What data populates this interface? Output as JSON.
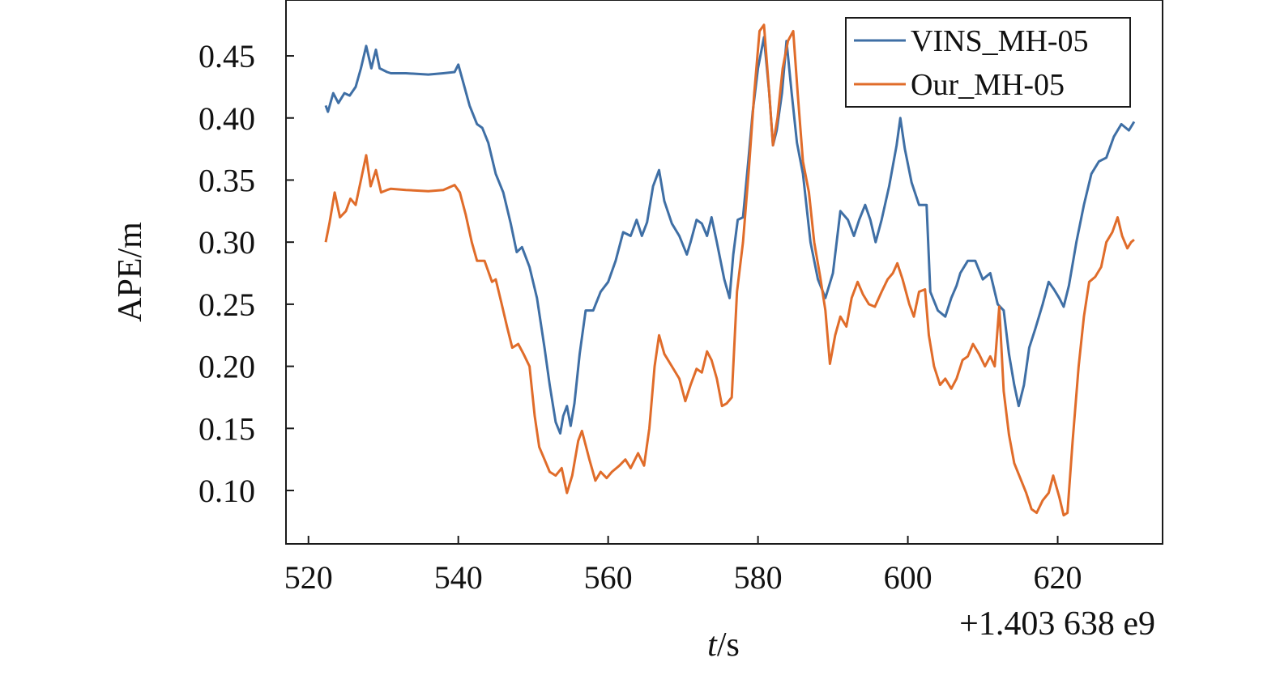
{
  "chart_data": {
    "type": "line",
    "xlabel_italic": "t",
    "xlabel_rest": "/s",
    "ylabel": "APE/m",
    "x_offset_label": "+1.403 638 e9",
    "xlim": [
      517,
      634
    ],
    "ylim": [
      0.057,
      0.495
    ],
    "x_ticks": [
      520,
      540,
      560,
      580,
      600,
      620
    ],
    "x_tick_labels": [
      "520",
      "540",
      "560",
      "580",
      "600",
      "620"
    ],
    "y_ticks": [
      0.1,
      0.15,
      0.2,
      0.25,
      0.3,
      0.35,
      0.4,
      0.45
    ],
    "y_tick_labels": [
      "0.10",
      "0.15",
      "0.20",
      "0.25",
      "0.30",
      "0.35",
      "0.40",
      "0.45"
    ],
    "grid": false,
    "legend_position": "top-right",
    "series": [
      {
        "name": "VINS_MH-05",
        "color": "#3f6fa5",
        "points": [
          [
            522.3,
            0.41
          ],
          [
            522.6,
            0.405
          ],
          [
            523.3,
            0.42
          ],
          [
            524.0,
            0.412
          ],
          [
            524.8,
            0.42
          ],
          [
            525.5,
            0.418
          ],
          [
            526.3,
            0.425
          ],
          [
            527.0,
            0.44
          ],
          [
            527.7,
            0.458
          ],
          [
            528.4,
            0.44
          ],
          [
            529.0,
            0.455
          ],
          [
            529.5,
            0.44
          ],
          [
            530.5,
            0.437
          ],
          [
            531.0,
            0.436
          ],
          [
            533.0,
            0.436
          ],
          [
            536.0,
            0.435
          ],
          [
            538.0,
            0.436
          ],
          [
            539.5,
            0.437
          ],
          [
            540.0,
            0.443
          ],
          [
            540.6,
            0.43
          ],
          [
            541.5,
            0.41
          ],
          [
            542.5,
            0.395
          ],
          [
            543.2,
            0.392
          ],
          [
            544.0,
            0.38
          ],
          [
            545.0,
            0.355
          ],
          [
            546.0,
            0.34
          ],
          [
            547.0,
            0.315
          ],
          [
            547.8,
            0.292
          ],
          [
            548.5,
            0.296
          ],
          [
            549.5,
            0.28
          ],
          [
            550.5,
            0.255
          ],
          [
            551.5,
            0.215
          ],
          [
            552.2,
            0.185
          ],
          [
            553.0,
            0.155
          ],
          [
            553.6,
            0.146
          ],
          [
            554.0,
            0.16
          ],
          [
            554.5,
            0.168
          ],
          [
            555.0,
            0.152
          ],
          [
            555.5,
            0.17
          ],
          [
            556.2,
            0.21
          ],
          [
            557.0,
            0.245
          ],
          [
            558.0,
            0.245
          ],
          [
            559.0,
            0.26
          ],
          [
            560.0,
            0.268
          ],
          [
            561.0,
            0.285
          ],
          [
            562.0,
            0.308
          ],
          [
            563.0,
            0.305
          ],
          [
            563.8,
            0.318
          ],
          [
            564.5,
            0.305
          ],
          [
            565.2,
            0.316
          ],
          [
            566.0,
            0.345
          ],
          [
            566.8,
            0.358
          ],
          [
            567.5,
            0.333
          ],
          [
            568.5,
            0.315
          ],
          [
            569.5,
            0.305
          ],
          [
            570.5,
            0.29
          ],
          [
            571.0,
            0.3
          ],
          [
            571.8,
            0.318
          ],
          [
            572.5,
            0.315
          ],
          [
            573.2,
            0.305
          ],
          [
            573.8,
            0.32
          ],
          [
            574.5,
            0.3
          ],
          [
            575.5,
            0.27
          ],
          [
            576.2,
            0.255
          ],
          [
            576.7,
            0.29
          ],
          [
            577.3,
            0.318
          ],
          [
            578.0,
            0.32
          ],
          [
            578.7,
            0.365
          ],
          [
            579.3,
            0.405
          ],
          [
            580.0,
            0.44
          ],
          [
            580.8,
            0.465
          ],
          [
            581.5,
            0.42
          ],
          [
            582.0,
            0.378
          ],
          [
            582.5,
            0.39
          ],
          [
            583.2,
            0.42
          ],
          [
            583.8,
            0.462
          ],
          [
            584.5,
            0.42
          ],
          [
            585.2,
            0.38
          ],
          [
            586.0,
            0.355
          ],
          [
            587.0,
            0.3
          ],
          [
            588.0,
            0.27
          ],
          [
            589.0,
            0.255
          ],
          [
            590.0,
            0.275
          ],
          [
            591.0,
            0.325
          ],
          [
            592.0,
            0.318
          ],
          [
            592.8,
            0.305
          ],
          [
            593.5,
            0.318
          ],
          [
            594.3,
            0.33
          ],
          [
            595.0,
            0.318
          ],
          [
            595.7,
            0.3
          ],
          [
            596.5,
            0.318
          ],
          [
            597.5,
            0.345
          ],
          [
            598.5,
            0.378
          ],
          [
            599.0,
            0.4
          ],
          [
            599.6,
            0.375
          ],
          [
            600.5,
            0.348
          ],
          [
            601.5,
            0.33
          ],
          [
            602.5,
            0.33
          ],
          [
            603.0,
            0.26
          ],
          [
            604.0,
            0.245
          ],
          [
            605.0,
            0.24
          ],
          [
            605.8,
            0.255
          ],
          [
            606.5,
            0.265
          ],
          [
            607.0,
            0.275
          ],
          [
            608.0,
            0.285
          ],
          [
            609.0,
            0.285
          ],
          [
            610.0,
            0.27
          ],
          [
            611.0,
            0.275
          ],
          [
            612.0,
            0.25
          ],
          [
            612.8,
            0.245
          ],
          [
            613.5,
            0.21
          ],
          [
            614.2,
            0.185
          ],
          [
            614.8,
            0.168
          ],
          [
            615.5,
            0.185
          ],
          [
            616.2,
            0.215
          ],
          [
            617.0,
            0.23
          ],
          [
            618.0,
            0.25
          ],
          [
            618.8,
            0.268
          ],
          [
            619.5,
            0.262
          ],
          [
            620.2,
            0.255
          ],
          [
            620.8,
            0.248
          ],
          [
            621.5,
            0.265
          ],
          [
            622.5,
            0.3
          ],
          [
            623.5,
            0.33
          ],
          [
            624.5,
            0.355
          ],
          [
            625.5,
            0.365
          ],
          [
            626.5,
            0.368
          ],
          [
            627.5,
            0.385
          ],
          [
            628.5,
            0.395
          ],
          [
            629.5,
            0.39
          ],
          [
            630.2,
            0.397
          ]
        ]
      },
      {
        "name": "Our_MH-05",
        "color": "#e06c2a",
        "points": [
          [
            522.3,
            0.3
          ],
          [
            522.8,
            0.315
          ],
          [
            523.5,
            0.34
          ],
          [
            524.2,
            0.32
          ],
          [
            525.0,
            0.325
          ],
          [
            525.6,
            0.335
          ],
          [
            526.3,
            0.33
          ],
          [
            527.0,
            0.35
          ],
          [
            527.7,
            0.37
          ],
          [
            528.3,
            0.345
          ],
          [
            529.0,
            0.358
          ],
          [
            529.7,
            0.34
          ],
          [
            530.5,
            0.342
          ],
          [
            531.0,
            0.343
          ],
          [
            533.0,
            0.342
          ],
          [
            536.0,
            0.341
          ],
          [
            538.0,
            0.342
          ],
          [
            539.5,
            0.346
          ],
          [
            540.2,
            0.34
          ],
          [
            541.0,
            0.322
          ],
          [
            541.8,
            0.3
          ],
          [
            542.5,
            0.285
          ],
          [
            543.5,
            0.285
          ],
          [
            544.5,
            0.268
          ],
          [
            545.0,
            0.27
          ],
          [
            545.8,
            0.25
          ],
          [
            546.5,
            0.232
          ],
          [
            547.2,
            0.215
          ],
          [
            548.0,
            0.218
          ],
          [
            548.7,
            0.21
          ],
          [
            549.5,
            0.2
          ],
          [
            550.2,
            0.16
          ],
          [
            550.8,
            0.135
          ],
          [
            551.5,
            0.125
          ],
          [
            552.2,
            0.115
          ],
          [
            553.0,
            0.112
          ],
          [
            553.8,
            0.118
          ],
          [
            554.5,
            0.098
          ],
          [
            555.2,
            0.112
          ],
          [
            556.0,
            0.14
          ],
          [
            556.5,
            0.148
          ],
          [
            557.5,
            0.125
          ],
          [
            558.3,
            0.108
          ],
          [
            559.0,
            0.115
          ],
          [
            559.8,
            0.11
          ],
          [
            560.5,
            0.115
          ],
          [
            561.5,
            0.12
          ],
          [
            562.3,
            0.125
          ],
          [
            563.0,
            0.118
          ],
          [
            564.0,
            0.13
          ],
          [
            564.8,
            0.12
          ],
          [
            565.5,
            0.15
          ],
          [
            566.2,
            0.2
          ],
          [
            566.8,
            0.225
          ],
          [
            567.5,
            0.21
          ],
          [
            568.5,
            0.2
          ],
          [
            569.5,
            0.19
          ],
          [
            570.3,
            0.172
          ],
          [
            571.0,
            0.185
          ],
          [
            571.8,
            0.198
          ],
          [
            572.5,
            0.195
          ],
          [
            573.2,
            0.212
          ],
          [
            573.8,
            0.205
          ],
          [
            574.5,
            0.19
          ],
          [
            575.2,
            0.168
          ],
          [
            575.8,
            0.17
          ],
          [
            576.5,
            0.175
          ],
          [
            577.2,
            0.26
          ],
          [
            578.0,
            0.3
          ],
          [
            578.8,
            0.36
          ],
          [
            579.5,
            0.42
          ],
          [
            580.2,
            0.47
          ],
          [
            580.8,
            0.475
          ],
          [
            581.5,
            0.42
          ],
          [
            582.0,
            0.378
          ],
          [
            582.6,
            0.4
          ],
          [
            583.3,
            0.44
          ],
          [
            584.0,
            0.462
          ],
          [
            584.7,
            0.47
          ],
          [
            585.3,
            0.42
          ],
          [
            586.0,
            0.365
          ],
          [
            586.8,
            0.34
          ],
          [
            587.5,
            0.3
          ],
          [
            588.3,
            0.272
          ],
          [
            589.0,
            0.245
          ],
          [
            589.6,
            0.202
          ],
          [
            590.3,
            0.225
          ],
          [
            591.0,
            0.24
          ],
          [
            591.8,
            0.232
          ],
          [
            592.5,
            0.255
          ],
          [
            593.3,
            0.268
          ],
          [
            594.0,
            0.258
          ],
          [
            594.8,
            0.25
          ],
          [
            595.6,
            0.248
          ],
          [
            596.5,
            0.26
          ],
          [
            597.3,
            0.27
          ],
          [
            598.0,
            0.275
          ],
          [
            598.6,
            0.283
          ],
          [
            599.3,
            0.27
          ],
          [
            600.2,
            0.25
          ],
          [
            600.8,
            0.24
          ],
          [
            601.5,
            0.26
          ],
          [
            602.3,
            0.262
          ],
          [
            602.8,
            0.225
          ],
          [
            603.5,
            0.2
          ],
          [
            604.3,
            0.185
          ],
          [
            605.0,
            0.19
          ],
          [
            605.8,
            0.182
          ],
          [
            606.5,
            0.19
          ],
          [
            607.3,
            0.205
          ],
          [
            608.0,
            0.208
          ],
          [
            608.7,
            0.218
          ],
          [
            609.5,
            0.21
          ],
          [
            610.3,
            0.2
          ],
          [
            611.0,
            0.208
          ],
          [
            611.6,
            0.2
          ],
          [
            612.2,
            0.248
          ],
          [
            612.8,
            0.18
          ],
          [
            613.5,
            0.145
          ],
          [
            614.2,
            0.122
          ],
          [
            615.0,
            0.11
          ],
          [
            615.8,
            0.098
          ],
          [
            616.5,
            0.085
          ],
          [
            617.2,
            0.082
          ],
          [
            618.0,
            0.092
          ],
          [
            618.8,
            0.098
          ],
          [
            619.4,
            0.112
          ],
          [
            620.2,
            0.095
          ],
          [
            620.8,
            0.08
          ],
          [
            621.3,
            0.082
          ],
          [
            622.0,
            0.14
          ],
          [
            622.8,
            0.2
          ],
          [
            623.5,
            0.24
          ],
          [
            624.2,
            0.268
          ],
          [
            625.0,
            0.272
          ],
          [
            625.8,
            0.28
          ],
          [
            626.5,
            0.3
          ],
          [
            627.3,
            0.308
          ],
          [
            628.0,
            0.32
          ],
          [
            628.6,
            0.305
          ],
          [
            629.3,
            0.295
          ],
          [
            629.8,
            0.3
          ],
          [
            630.2,
            0.302
          ]
        ]
      }
    ]
  }
}
